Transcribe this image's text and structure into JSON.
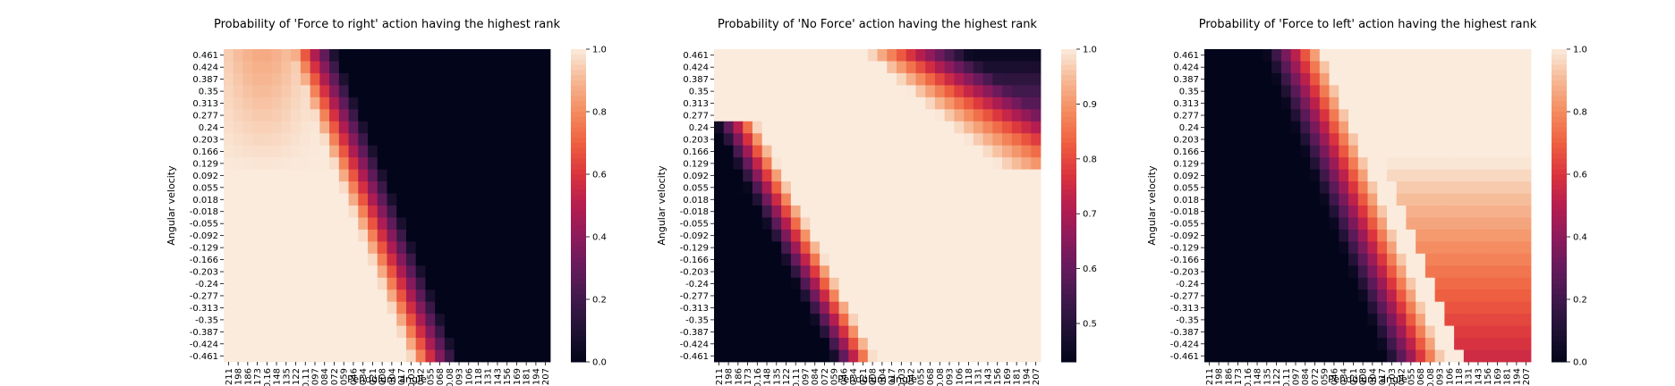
{
  "chart_data": [
    {
      "type": "heatmap",
      "title": "Probability of 'Force to right' action having the highest rank",
      "xlabel": "Pendulum angle",
      "ylabel": "Angular velocity",
      "x_ticks": [
        "-0.211",
        "-0.198",
        "-0.186",
        "-0.173",
        "-0.16",
        "-0.148",
        "-0.135",
        "-0.122",
        "-0.11",
        "-0.097",
        "-0.084",
        "-0.072",
        "-0.059",
        "-0.046",
        "-0.034",
        "-0.021",
        "-0.008",
        "0.004",
        "0.017",
        "0.03",
        "0.042",
        "0.055",
        "0.068",
        "0.08",
        "0.093",
        "0.106",
        "0.118",
        "0.131",
        "0.143",
        "0.156",
        "0.169",
        "0.181",
        "0.194",
        "0.207"
      ],
      "y_ticks": [
        "0.461",
        "0.424",
        "0.387",
        "0.35",
        "0.313",
        "0.277",
        "0.24",
        "0.203",
        "0.166",
        "0.129",
        "0.092",
        "0.055",
        "0.018",
        "-0.018",
        "-0.055",
        "-0.092",
        "-0.129",
        "-0.166",
        "-0.203",
        "-0.24",
        "-0.277",
        "-0.313",
        "-0.35",
        "-0.387",
        "-0.424",
        "-0.461"
      ],
      "colorbar": {
        "range": [
          0.0,
          1.0
        ],
        "ticks": [
          "0.0",
          "0.2",
          "0.4",
          "0.6",
          "0.8",
          "1.0"
        ]
      },
      "colormap": "rocket",
      "pattern": "right_force"
    },
    {
      "type": "heatmap",
      "title": "Probability of 'No Force' action having the highest rank",
      "xlabel": "Pendulum angle",
      "ylabel": "Angular velocity",
      "x_ticks": [
        "-0.211",
        "-0.198",
        "-0.186",
        "-0.173",
        "-0.16",
        "-0.148",
        "-0.135",
        "-0.122",
        "-0.11",
        "-0.097",
        "-0.084",
        "-0.072",
        "-0.059",
        "-0.046",
        "-0.034",
        "-0.021",
        "-0.008",
        "0.004",
        "0.017",
        "0.03",
        "0.042",
        "0.055",
        "0.068",
        "0.08",
        "0.093",
        "0.106",
        "0.118",
        "0.131",
        "0.143",
        "0.156",
        "0.169",
        "0.181",
        "0.194",
        "0.207"
      ],
      "y_ticks": [
        "0.461",
        "0.424",
        "0.387",
        "0.35",
        "0.313",
        "0.277",
        "0.24",
        "0.203",
        "0.166",
        "0.129",
        "0.092",
        "0.055",
        "0.018",
        "-0.018",
        "-0.055",
        "-0.092",
        "-0.129",
        "-0.166",
        "-0.203",
        "-0.24",
        "-0.277",
        "-0.313",
        "-0.35",
        "-0.387",
        "-0.424",
        "-0.461"
      ],
      "colorbar": {
        "range": [
          0.43,
          1.0
        ],
        "ticks": [
          "0.5",
          "0.6",
          "0.7",
          "0.8",
          "0.9",
          "1.0"
        ]
      },
      "colormap": "rocket",
      "pattern": "no_force"
    },
    {
      "type": "heatmap",
      "title": "Probability of 'Force to left' action having the highest rank",
      "xlabel": "Pendulum angle",
      "ylabel": "Angular velocity",
      "x_ticks": [
        "-0.211",
        "-0.198",
        "-0.186",
        "-0.173",
        "-0.16",
        "-0.148",
        "-0.135",
        "-0.122",
        "-0.11",
        "-0.097",
        "-0.084",
        "-0.072",
        "-0.059",
        "-0.046",
        "-0.034",
        "-0.021",
        "-0.008",
        "0.004",
        "0.017",
        "0.03",
        "0.042",
        "0.055",
        "0.068",
        "0.08",
        "0.093",
        "0.106",
        "0.118",
        "0.131",
        "0.143",
        "0.156",
        "0.169",
        "0.181",
        "0.194",
        "0.207"
      ],
      "y_ticks": [
        "0.461",
        "0.424",
        "0.387",
        "0.35",
        "0.313",
        "0.277",
        "0.24",
        "0.203",
        "0.166",
        "0.129",
        "0.092",
        "0.055",
        "0.018",
        "-0.018",
        "-0.055",
        "-0.092",
        "-0.129",
        "-0.166",
        "-0.203",
        "-0.24",
        "-0.277",
        "-0.313",
        "-0.35",
        "-0.387",
        "-0.424",
        "-0.461"
      ],
      "colorbar": {
        "range": [
          0.0,
          1.0
        ],
        "ticks": [
          "0.0",
          "0.2",
          "0.4",
          "0.6",
          "0.8",
          "1.0"
        ]
      },
      "colormap": "rocket",
      "pattern": "left_force"
    }
  ]
}
